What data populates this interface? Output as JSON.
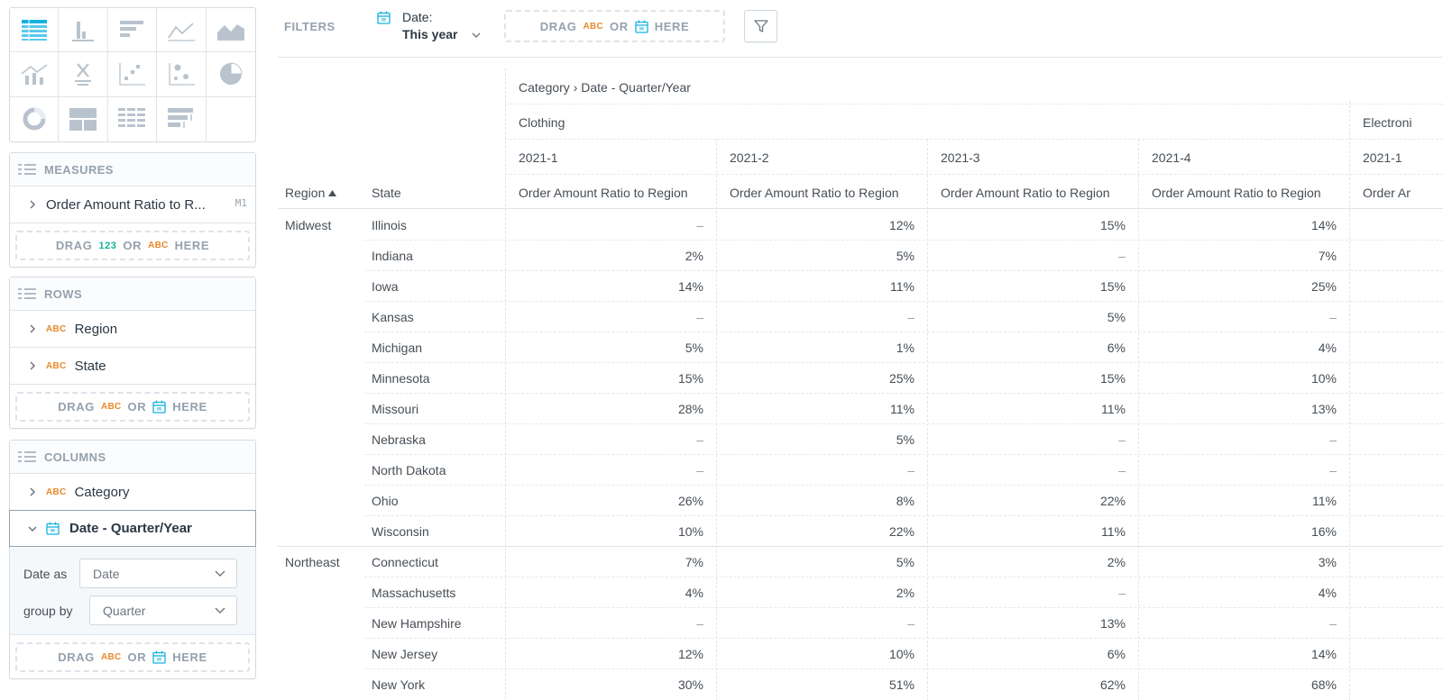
{
  "viz_types": [
    {
      "icon": "table-chart-icon",
      "active": true
    },
    {
      "icon": "column-chart-icon",
      "active": false
    },
    {
      "icon": "bar-chart-icon",
      "active": false
    },
    {
      "icon": "line-chart-icon",
      "active": false
    },
    {
      "icon": "area-chart-icon",
      "active": false
    },
    {
      "icon": "combo-chart-icon",
      "active": false
    },
    {
      "icon": "headline-icon",
      "active": false
    },
    {
      "icon": "scatter-plot-icon",
      "active": false
    },
    {
      "icon": "bubble-chart-icon",
      "active": false
    },
    {
      "icon": "pie-chart-icon",
      "active": false
    },
    {
      "icon": "donut-chart-icon",
      "active": false
    },
    {
      "icon": "treemap-icon",
      "active": false
    },
    {
      "icon": "heatmap-icon",
      "active": false
    },
    {
      "icon": "bullet-chart-icon",
      "active": false
    },
    {
      "icon": "",
      "active": false
    }
  ],
  "measures": {
    "title": "MEASURES",
    "item": "Order Amount Ratio to R...",
    "badge": "M1",
    "drop": {
      "drag": "DRAG",
      "num_type": "123",
      "or": "OR",
      "abc_type": "ABC",
      "here": "HERE"
    }
  },
  "rows": {
    "title": "ROWS",
    "items": [
      {
        "type": "ABC",
        "label": "Region"
      },
      {
        "type": "ABC",
        "label": "State"
      }
    ],
    "drop": {
      "drag": "DRAG",
      "abc_type": "ABC",
      "or": "OR",
      "here": "HERE"
    }
  },
  "columns": {
    "title": "COLUMNS",
    "category": {
      "type": "ABC",
      "label": "Category"
    },
    "date_item": {
      "label": "Date - Quarter/Year"
    },
    "date_as_label": "Date as",
    "date_as_value": "Date",
    "group_by_label": "group by",
    "group_by_value": "Quarter",
    "drop": {
      "drag": "DRAG",
      "abc_type": "ABC",
      "or": "OR",
      "here": "HERE"
    }
  },
  "filter_bar": {
    "label": "FILTERS",
    "date_filter_title": "Date:",
    "date_filter_value": "This year",
    "drop": {
      "drag": "DRAG",
      "abc_type": "ABC",
      "or": "OR",
      "here": "HERE"
    }
  },
  "colors": {
    "abc_type": "#e8892b",
    "num_type": "#13b296",
    "date_icon": "#14b2e2",
    "active_viz": "#14b2e2",
    "muted": "#94a1ad"
  },
  "table": {
    "column_path": "Category › Date - Quarter/Year",
    "categories": [
      "Clothing",
      "Electroni"
    ],
    "quarters": [
      "2021-1",
      "2021-2",
      "2021-3",
      "2021-4",
      "2021-1"
    ],
    "row_headers": {
      "region": "Region",
      "state": "State"
    },
    "measure_header": "Order Amount Ratio to Region",
    "measure_header_cut": "Order Ar",
    "rows": [
      {
        "region": "Midwest",
        "state": "Illinois",
        "values": [
          "–",
          "12%",
          "15%",
          "14%"
        ]
      },
      {
        "region": "",
        "state": "Indiana",
        "values": [
          "2%",
          "5%",
          "–",
          "7%"
        ]
      },
      {
        "region": "",
        "state": "Iowa",
        "values": [
          "14%",
          "11%",
          "15%",
          "25%"
        ]
      },
      {
        "region": "",
        "state": "Kansas",
        "values": [
          "–",
          "–",
          "5%",
          "–"
        ]
      },
      {
        "region": "",
        "state": "Michigan",
        "values": [
          "5%",
          "1%",
          "6%",
          "4%"
        ]
      },
      {
        "region": "",
        "state": "Minnesota",
        "values": [
          "15%",
          "25%",
          "15%",
          "10%"
        ]
      },
      {
        "region": "",
        "state": "Missouri",
        "values": [
          "28%",
          "11%",
          "11%",
          "13%"
        ]
      },
      {
        "region": "",
        "state": "Nebraska",
        "values": [
          "–",
          "5%",
          "–",
          "–"
        ]
      },
      {
        "region": "",
        "state": "North Dakota",
        "values": [
          "–",
          "–",
          "–",
          "–"
        ]
      },
      {
        "region": "",
        "state": "Ohio",
        "values": [
          "26%",
          "8%",
          "22%",
          "11%"
        ]
      },
      {
        "region": "",
        "state": "Wisconsin",
        "values": [
          "10%",
          "22%",
          "11%",
          "16%"
        ]
      },
      {
        "region": "Northeast",
        "state": "Connecticut",
        "values": [
          "7%",
          "5%",
          "2%",
          "3%"
        ]
      },
      {
        "region": "",
        "state": "Massachusetts",
        "values": [
          "4%",
          "2%",
          "–",
          "4%"
        ]
      },
      {
        "region": "",
        "state": "New Hampshire",
        "values": [
          "–",
          "–",
          "13%",
          "–"
        ]
      },
      {
        "region": "",
        "state": "New Jersey",
        "values": [
          "12%",
          "10%",
          "6%",
          "14%"
        ]
      },
      {
        "region": "",
        "state": "New York",
        "values": [
          "30%",
          "51%",
          "62%",
          "68%"
        ]
      }
    ]
  }
}
